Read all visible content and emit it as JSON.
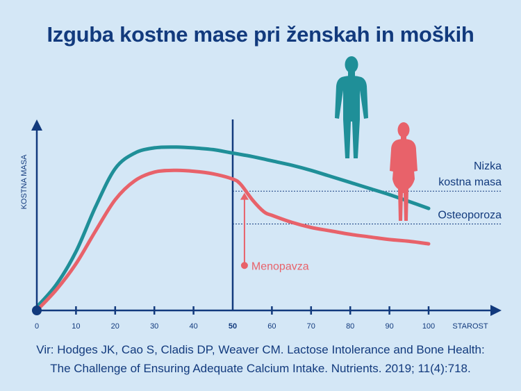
{
  "title": "Izguba kostne mase pri ženskah in moških",
  "source": {
    "line1": "Vir: Hodges JK, Cao S, Cladis DP, Weaver CM. Lactose Intolerance and Bone Health:",
    "line2": "The Challenge of Ensuring Adequate Calcium Intake. Nutrients. 2019; 11(4):718."
  },
  "colors": {
    "background": "#d4e7f6",
    "axis": "#123a7d",
    "men": "#1f8f98",
    "women": "#e8626a"
  },
  "chart_data": {
    "type": "line",
    "title": "Izguba kostne mase pri ženskah in moških",
    "xlabel": "STAROST",
    "ylabel": "KOSTNA MASA",
    "xlim": [
      0,
      100
    ],
    "ylim": [
      0,
      100
    ],
    "x_ticks": [
      "0",
      "10",
      "20",
      "30",
      "40",
      "50",
      "60",
      "70",
      "80",
      "90",
      "100"
    ],
    "highlight_tick": "50",
    "grid": false,
    "series": [
      {
        "key": "men",
        "color": "#1f8f98",
        "icon": "male-figure-icon",
        "x": [
          0,
          5,
          10,
          15,
          20,
          25,
          30,
          35,
          40,
          45,
          50,
          55,
          60,
          65,
          70,
          75,
          80,
          85,
          90,
          95,
          100
        ],
        "y": [
          2,
          15,
          34,
          60,
          82,
          91,
          94,
          94.5,
          94,
          93,
          91,
          89,
          86.5,
          84,
          81,
          77.5,
          74,
          70.5,
          67,
          63,
          59
        ]
      },
      {
        "key": "women",
        "color": "#e8626a",
        "icon": "female-figure-icon",
        "x": [
          0,
          5,
          10,
          15,
          20,
          25,
          30,
          35,
          40,
          45,
          50,
          52,
          55,
          58,
          60,
          65,
          70,
          75,
          80,
          85,
          90,
          95,
          100
        ],
        "y": [
          0,
          12,
          27,
          46,
          64,
          75,
          80,
          81,
          80.5,
          79,
          76,
          73,
          64,
          57,
          55,
          51,
          48,
          46,
          44,
          42.5,
          41,
          40,
          38.5
        ]
      }
    ],
    "thresholds": [
      {
        "label_lines": [
          "Nizka",
          "kostna masa"
        ],
        "y": 69
      },
      {
        "label": "Osteoporoza",
        "y": 50
      }
    ],
    "marker_line": {
      "x": 50
    },
    "annotation": {
      "label": "Menopavza",
      "x": 53,
      "y_from": 26,
      "y_to": 68
    }
  }
}
